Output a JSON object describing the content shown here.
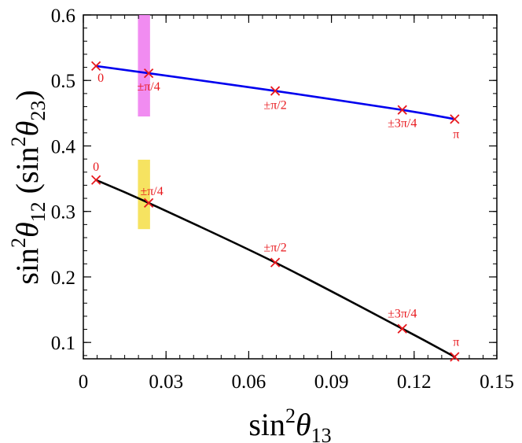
{
  "chart_data": {
    "type": "line",
    "xlabel": "sin²θ₁₃",
    "ylabel": "sin²θ₁₂ (sin²θ₂₃)",
    "xlim": [
      0,
      0.15
    ],
    "ylim": [
      0.075,
      0.6
    ],
    "x_ticks": [
      0,
      0.03,
      0.06,
      0.09,
      0.12,
      0.15
    ],
    "x_tick_labels": [
      "0",
      "0.03",
      "0.06",
      "0.09",
      "0.12",
      "0.15"
    ],
    "y_ticks": [
      0.1,
      0.2,
      0.3,
      0.4,
      0.5,
      0.6
    ],
    "y_tick_labels": [
      "0.1",
      "0.2",
      "0.3",
      "0.4",
      "0.5",
      "0.6"
    ],
    "bands": [
      {
        "name": "sin2theta23-range",
        "color": "#f080f0",
        "x": [
          0.0198,
          0.0242
        ],
        "y": [
          0.445,
          0.6
        ]
      },
      {
        "name": "sin2theta12-range",
        "color": "#f5e050",
        "x": [
          0.0198,
          0.0242
        ],
        "y": [
          0.273,
          0.379
        ]
      }
    ],
    "series": [
      {
        "name": "sin2theta23",
        "color": "#0000ee",
        "x": [
          0.0046,
          0.0237,
          0.0696,
          0.1157,
          0.1347
        ],
        "y": [
          0.522,
          0.511,
          0.484,
          0.455,
          0.441
        ],
        "labels": [
          "0",
          "±π/4",
          "±π/2",
          "±3π/4",
          "π"
        ]
      },
      {
        "name": "sin2theta12",
        "color": "#000000",
        "x": [
          0.0046,
          0.0237,
          0.0696,
          0.1157,
          0.1347
        ],
        "y": [
          0.348,
          0.313,
          0.222,
          0.121,
          0.078
        ],
        "labels": [
          "0",
          "±π/4",
          "±π/2",
          "±3π/4",
          "π"
        ]
      }
    ],
    "marker_color": "#e8181d"
  }
}
